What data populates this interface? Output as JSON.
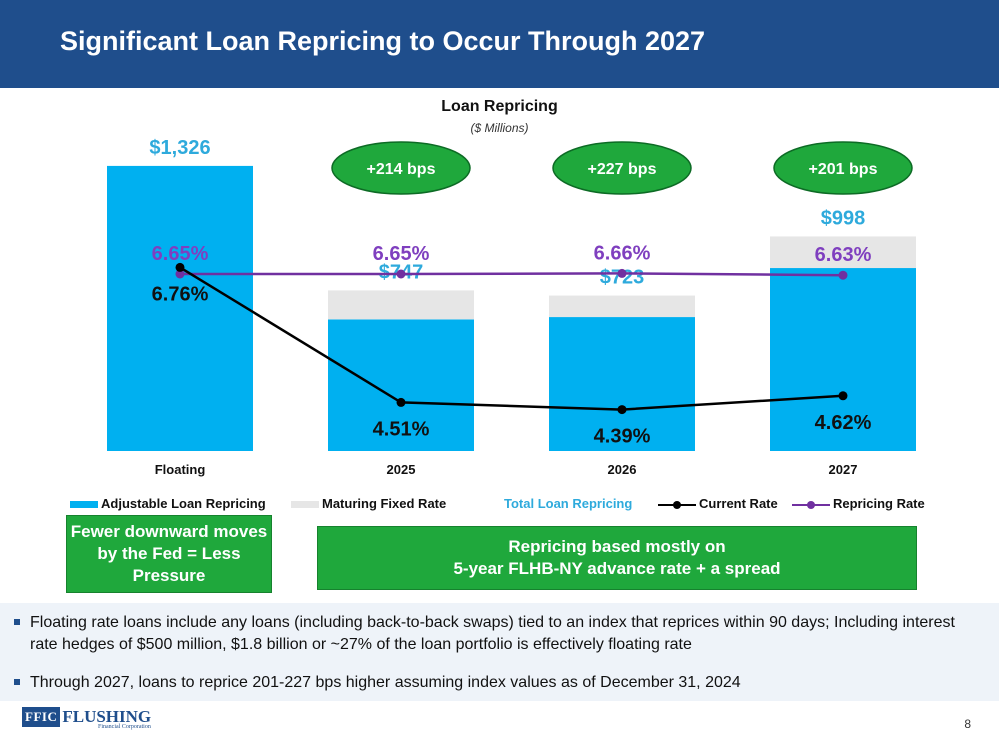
{
  "header": {
    "title": "Significant Loan Repricing to Occur Through 2027"
  },
  "chart_data": {
    "type": "bar",
    "title": "Loan Repricing",
    "subtitle": "($ Millions)",
    "categories": [
      "Floating",
      "2025",
      "2026",
      "2027"
    ],
    "ylim": [
      0,
      1400
    ],
    "series": [
      {
        "name": "Adjustable Loan Repricing",
        "kind": "bar",
        "values": [
          1326,
          612,
          623,
          851
        ]
      },
      {
        "name": "Maturing Fixed Rate",
        "kind": "bar",
        "values": [
          0,
          135,
          100,
          147
        ]
      },
      {
        "name": "Total Loan Repricing",
        "kind": "label",
        "values": [
          1326,
          747,
          723,
          998
        ]
      },
      {
        "name": "Current Rate",
        "kind": "line",
        "values": [
          6.76,
          4.51,
          4.39,
          4.62
        ]
      },
      {
        "name": "Repricing Rate",
        "kind": "line",
        "values": [
          6.65,
          6.65,
          6.66,
          6.63
        ]
      }
    ],
    "total_labels": [
      "$1,326",
      "$747",
      "$723",
      "$998"
    ],
    "current_rate_labels": [
      "6.76%",
      "4.51%",
      "4.39%",
      "4.62%"
    ],
    "repricing_rate_labels": [
      "6.65%",
      "6.65%",
      "6.66%",
      "6.63%"
    ],
    "spread_labels": [
      "+214 bps",
      "+227 bps",
      "+201 bps"
    ],
    "rate_axis_range": [
      3.5,
      7.5
    ],
    "colors": {
      "adjustable": "#00b0f0",
      "maturing": "#e6e6e6",
      "total_label": "#2eaadc",
      "current_rate": "#000000",
      "repricing_rate": "#7030a0",
      "repricing_label": "#7f3fbf",
      "bubble": "#1fa83c",
      "bubble_border": "#0d6b25"
    }
  },
  "legend": {
    "adjustable": "Adjustable Loan Repricing",
    "maturing": "Maturing Fixed Rate",
    "total": "Total Loan Repricing",
    "current": "Current Rate",
    "repricing": "Repricing Rate"
  },
  "callouts": {
    "left": "Fewer downward moves by the Fed = Less Pressure",
    "right_line1": "Repricing based mostly on",
    "right_line2": "5-year FLHB-NY advance rate + a spread"
  },
  "notes": [
    "Floating rate loans include any loans (including back-to-back swaps) tied to an index that reprices within 90 days; Including interest rate hedges of $500 million, $1.8 billion or ~27% of the loan portfolio is effectively floating rate",
    "Through 2027, loans to reprice 201-227 bps higher assuming index values as of December 31, 2024"
  ],
  "footer": {
    "logo_mark": "FFIC",
    "logo_name": "FLUSHING",
    "logo_sub": "Financial Corporation",
    "page_number": "8"
  }
}
